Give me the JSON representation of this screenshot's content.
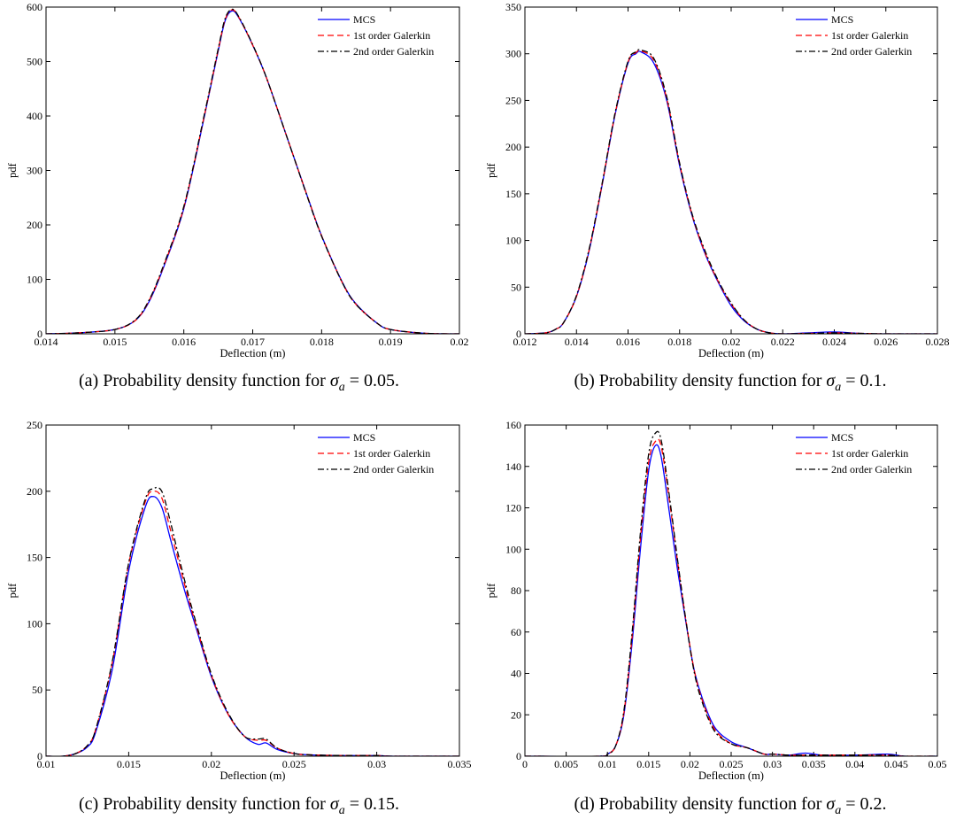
{
  "legend": {
    "entries": [
      {
        "label": "MCS",
        "color": "#0000ff",
        "dash": "solid"
      },
      {
        "label": "1st order Galerkin",
        "color": "#ff0000",
        "dash": "dashed"
      },
      {
        "label": "2nd order Galerkin",
        "color": "#000000",
        "dash": "dashdot"
      }
    ],
    "placement": "top-right"
  },
  "chart_data": [
    {
      "type": "line",
      "caption_prefix": "(a) Probability density function for",
      "caption_symbol": "σ",
      "caption_subscript": "a",
      "caption_value": "= 0.05.",
      "xlabel": "Deflection (m)",
      "ylabel": "pdf",
      "xlim": [
        0.014,
        0.02
      ],
      "ylim": [
        0,
        600
      ],
      "xticks": [
        0.014,
        0.015,
        0.016,
        0.017,
        0.018,
        0.019,
        0.02
      ],
      "xtick_labels": [
        "0.014",
        "0.015",
        "0.016",
        "0.017",
        "0.018",
        "0.019",
        "0.02"
      ],
      "yticks": [
        0,
        100,
        200,
        300,
        400,
        500,
        600
      ],
      "ytick_labels": [
        "0",
        "100",
        "200",
        "300",
        "400",
        "500",
        "600"
      ],
      "grid": false,
      "series": [
        {
          "name": "MCS",
          "x": [
            0.014,
            0.0145,
            0.015,
            0.0153,
            0.0155,
            0.0157,
            0.016,
            0.0163,
            0.0165,
            0.0166,
            0.0167,
            0.0168,
            0.017,
            0.0172,
            0.0175,
            0.0178,
            0.018,
            0.0183,
            0.0185,
            0.0188,
            0.019,
            0.0195,
            0.02
          ],
          "y": [
            0,
            2,
            8,
            25,
            60,
            120,
            230,
            400,
            520,
            575,
            593,
            580,
            530,
            470,
            360,
            250,
            180,
            95,
            55,
            20,
            8,
            1,
            0
          ]
        },
        {
          "name": "1st order Galerkin",
          "x": [
            0.014,
            0.0145,
            0.015,
            0.0153,
            0.0155,
            0.0157,
            0.016,
            0.0163,
            0.0165,
            0.0166,
            0.0167,
            0.0168,
            0.017,
            0.0172,
            0.0175,
            0.0178,
            0.018,
            0.0183,
            0.0185,
            0.0188,
            0.019,
            0.0195,
            0.02
          ],
          "y": [
            0,
            2,
            8,
            25,
            62,
            122,
            232,
            402,
            522,
            577,
            595,
            581,
            530,
            470,
            360,
            250,
            180,
            94,
            54,
            20,
            8,
            1,
            0
          ]
        },
        {
          "name": "2nd order Galerkin",
          "x": [
            0.014,
            0.0145,
            0.015,
            0.0153,
            0.0155,
            0.0157,
            0.016,
            0.0163,
            0.0165,
            0.0166,
            0.0167,
            0.0168,
            0.017,
            0.0172,
            0.0175,
            0.0178,
            0.018,
            0.0183,
            0.0185,
            0.0188,
            0.019,
            0.0195,
            0.02
          ],
          "y": [
            0,
            2,
            8,
            26,
            63,
            124,
            234,
            404,
            524,
            579,
            596,
            582,
            531,
            470,
            360,
            249,
            179,
            94,
            54,
            20,
            8,
            1,
            0
          ]
        }
      ]
    },
    {
      "type": "line",
      "caption_prefix": "(b) Probability density function for",
      "caption_symbol": "σ",
      "caption_subscript": "a",
      "caption_value": "= 0.1.",
      "xlabel": "Deflection (m)",
      "ylabel": "pdf",
      "xlim": [
        0.012,
        0.028
      ],
      "ylim": [
        0,
        350
      ],
      "xticks": [
        0.012,
        0.014,
        0.016,
        0.018,
        0.02,
        0.022,
        0.024,
        0.026,
        0.028
      ],
      "xtick_labels": [
        "0.012",
        "0.014",
        "0.016",
        "0.018",
        "0.02",
        "0.022",
        "0.024",
        "0.026",
        "0.028"
      ],
      "yticks": [
        0,
        50,
        100,
        150,
        200,
        250,
        300,
        350
      ],
      "ytick_labels": [
        "0",
        "50",
        "100",
        "150",
        "200",
        "250",
        "300",
        "350"
      ],
      "grid": false,
      "series": [
        {
          "name": "MCS",
          "x": [
            0.012,
            0.0128,
            0.0132,
            0.0135,
            0.014,
            0.0145,
            0.015,
            0.0155,
            0.016,
            0.0163,
            0.0165,
            0.017,
            0.0175,
            0.018,
            0.0185,
            0.019,
            0.0195,
            0.02,
            0.0205,
            0.021,
            0.0215,
            0.022,
            0.023,
            0.024,
            0.025,
            0.026,
            0.028
          ],
          "y": [
            0,
            1,
            5,
            12,
            40,
            90,
            160,
            235,
            290,
            300,
            302,
            290,
            250,
            180,
            125,
            85,
            55,
            30,
            14,
            5,
            1,
            0,
            1,
            2,
            0.5,
            0,
            0
          ]
        },
        {
          "name": "1st order Galerkin",
          "x": [
            0.012,
            0.0128,
            0.0132,
            0.0135,
            0.014,
            0.0145,
            0.015,
            0.0155,
            0.016,
            0.0163,
            0.0165,
            0.017,
            0.0175,
            0.018,
            0.0185,
            0.019,
            0.0195,
            0.02,
            0.0205,
            0.021,
            0.0215,
            0.022,
            0.023,
            0.024,
            0.025,
            0.026,
            0.028
          ],
          "y": [
            0,
            1,
            5,
            12,
            40,
            91,
            161,
            236,
            291,
            301,
            303,
            293,
            252,
            182,
            126,
            86,
            56,
            32,
            15,
            5,
            1,
            0,
            0.5,
            1,
            0.5,
            0,
            0
          ]
        },
        {
          "name": "2nd order Galerkin",
          "x": [
            0.012,
            0.0128,
            0.0132,
            0.0135,
            0.014,
            0.0145,
            0.015,
            0.0155,
            0.016,
            0.0163,
            0.0165,
            0.017,
            0.0175,
            0.018,
            0.0185,
            0.019,
            0.0195,
            0.02,
            0.0205,
            0.021,
            0.0215,
            0.022,
            0.023,
            0.024,
            0.025,
            0.026,
            0.028
          ],
          "y": [
            0,
            1,
            5,
            12,
            41,
            92,
            162,
            237,
            292,
            302,
            304,
            295,
            254,
            183,
            127,
            88,
            57,
            33,
            15,
            5,
            1,
            0,
            0.5,
            1,
            0.5,
            0,
            0
          ]
        }
      ]
    },
    {
      "type": "line",
      "caption_prefix": "(c) Probability density function for",
      "caption_symbol": "σ",
      "caption_subscript": "a",
      "caption_value": "= 0.15.",
      "xlabel": "Deflection (m)",
      "ylabel": "pdf",
      "xlim": [
        0.01,
        0.035
      ],
      "ylim": [
        0,
        250
      ],
      "xticks": [
        0.01,
        0.015,
        0.02,
        0.025,
        0.03,
        0.035
      ],
      "xtick_labels": [
        "0.01",
        "0.015",
        "0.02",
        "0.025",
        "0.03",
        "0.035"
      ],
      "yticks": [
        0,
        50,
        100,
        150,
        200,
        250
      ],
      "ytick_labels": [
        "0",
        "50",
        "100",
        "150",
        "200",
        "250"
      ],
      "grid": false,
      "series": [
        {
          "name": "MCS",
          "x": [
            0.01,
            0.011,
            0.0118,
            0.0125,
            0.013,
            0.014,
            0.015,
            0.016,
            0.0165,
            0.017,
            0.0175,
            0.018,
            0.0185,
            0.019,
            0.02,
            0.021,
            0.022,
            0.0228,
            0.0233,
            0.024,
            0.025,
            0.026,
            0.028,
            0.03,
            0.031,
            0.035
          ],
          "y": [
            0,
            0,
            2,
            7,
            18,
            65,
            140,
            188,
            196,
            188,
            165,
            142,
            120,
            100,
            60,
            32,
            15,
            9,
            10,
            5,
            2,
            1,
            0.5,
            0.5,
            0,
            0
          ]
        },
        {
          "name": "1st order Galerkin",
          "x": [
            0.01,
            0.011,
            0.0118,
            0.0125,
            0.013,
            0.014,
            0.015,
            0.016,
            0.0165,
            0.017,
            0.0175,
            0.018,
            0.0185,
            0.019,
            0.02,
            0.021,
            0.022,
            0.0228,
            0.0233,
            0.024,
            0.025,
            0.026,
            0.028,
            0.03,
            0.031,
            0.035
          ],
          "y": [
            0,
            0,
            2,
            8,
            20,
            70,
            145,
            192,
            200,
            195,
            172,
            148,
            124,
            102,
            61,
            32,
            15,
            12,
            12,
            6,
            2,
            1,
            0.5,
            0.5,
            0,
            0
          ]
        },
        {
          "name": "2nd order Galerkin",
          "x": [
            0.01,
            0.011,
            0.0118,
            0.0125,
            0.013,
            0.014,
            0.015,
            0.016,
            0.0165,
            0.017,
            0.0175,
            0.018,
            0.0185,
            0.019,
            0.02,
            0.021,
            0.022,
            0.0228,
            0.0233,
            0.024,
            0.025,
            0.026,
            0.028,
            0.03,
            0.031,
            0.035
          ],
          "y": [
            0,
            0,
            2,
            8,
            20,
            71,
            146,
            194,
            202,
            200,
            178,
            152,
            127,
            104,
            62,
            33,
            15,
            13,
            13,
            6,
            2,
            1,
            0.5,
            0.5,
            0,
            0
          ]
        }
      ]
    },
    {
      "type": "line",
      "caption_prefix": "(d) Probability density function for",
      "caption_symbol": "σ",
      "caption_subscript": "a",
      "caption_value": "= 0.2.",
      "xlabel": "Deflection (m)",
      "ylabel": "pdf",
      "xlim": [
        0,
        0.05
      ],
      "ylim": [
        0,
        160
      ],
      "xticks": [
        0,
        0.005,
        0.01,
        0.015,
        0.02,
        0.025,
        0.03,
        0.035,
        0.04,
        0.045,
        0.05
      ],
      "xtick_labels": [
        "0",
        "0.005",
        "0.01",
        "0.015",
        "0.02",
        "0.025",
        "0.03",
        "0.035",
        "0.04",
        "0.045",
        "0.05"
      ],
      "yticks": [
        0,
        20,
        40,
        60,
        80,
        100,
        120,
        140,
        160
      ],
      "ytick_labels": [
        "0",
        "20",
        "40",
        "60",
        "80",
        "100",
        "120",
        "140",
        "160"
      ],
      "grid": false,
      "series": [
        {
          "name": "MCS",
          "x": [
            0.0,
            0.009,
            0.01,
            0.011,
            0.012,
            0.013,
            0.014,
            0.015,
            0.0158,
            0.0165,
            0.0175,
            0.0185,
            0.0195,
            0.0205,
            0.0215,
            0.023,
            0.025,
            0.027,
            0.029,
            0.03,
            0.032,
            0.034,
            0.036,
            0.04,
            0.044,
            0.046,
            0.05
          ],
          "y": [
            0,
            0,
            1,
            5,
            20,
            55,
            100,
            138,
            150,
            145,
            118,
            90,
            65,
            42,
            28,
            14,
            7,
            4,
            1,
            1,
            0.5,
            1.5,
            0.5,
            0.5,
            1,
            0,
            0
          ]
        },
        {
          "name": "1st order Galerkin",
          "x": [
            0.0,
            0.009,
            0.01,
            0.011,
            0.012,
            0.013,
            0.014,
            0.015,
            0.0158,
            0.0165,
            0.0175,
            0.0185,
            0.0195,
            0.0205,
            0.0215,
            0.023,
            0.025,
            0.027,
            0.029,
            0.03,
            0.032,
            0.034,
            0.036,
            0.04,
            0.044,
            0.046,
            0.05
          ],
          "y": [
            0,
            0,
            1,
            5,
            21,
            58,
            105,
            142,
            152,
            150,
            124,
            94,
            66,
            42,
            27,
            13,
            6,
            4,
            1,
            1,
            0.5,
            0.5,
            0.5,
            0.5,
            0.5,
            0,
            0
          ]
        },
        {
          "name": "2nd order Galerkin",
          "x": [
            0.0,
            0.009,
            0.01,
            0.011,
            0.012,
            0.013,
            0.014,
            0.015,
            0.0158,
            0.0165,
            0.0175,
            0.0185,
            0.0195,
            0.0205,
            0.0215,
            0.023,
            0.025,
            0.027,
            0.029,
            0.03,
            0.032,
            0.034,
            0.036,
            0.04,
            0.044,
            0.046,
            0.05
          ],
          "y": [
            0,
            0,
            1,
            5,
            22,
            60,
            108,
            146,
            156,
            153,
            126,
            95,
            66,
            41,
            26,
            12,
            6,
            4,
            1,
            1,
            0.5,
            0.5,
            0.5,
            0.5,
            0.5,
            0,
            0
          ]
        }
      ]
    }
  ]
}
